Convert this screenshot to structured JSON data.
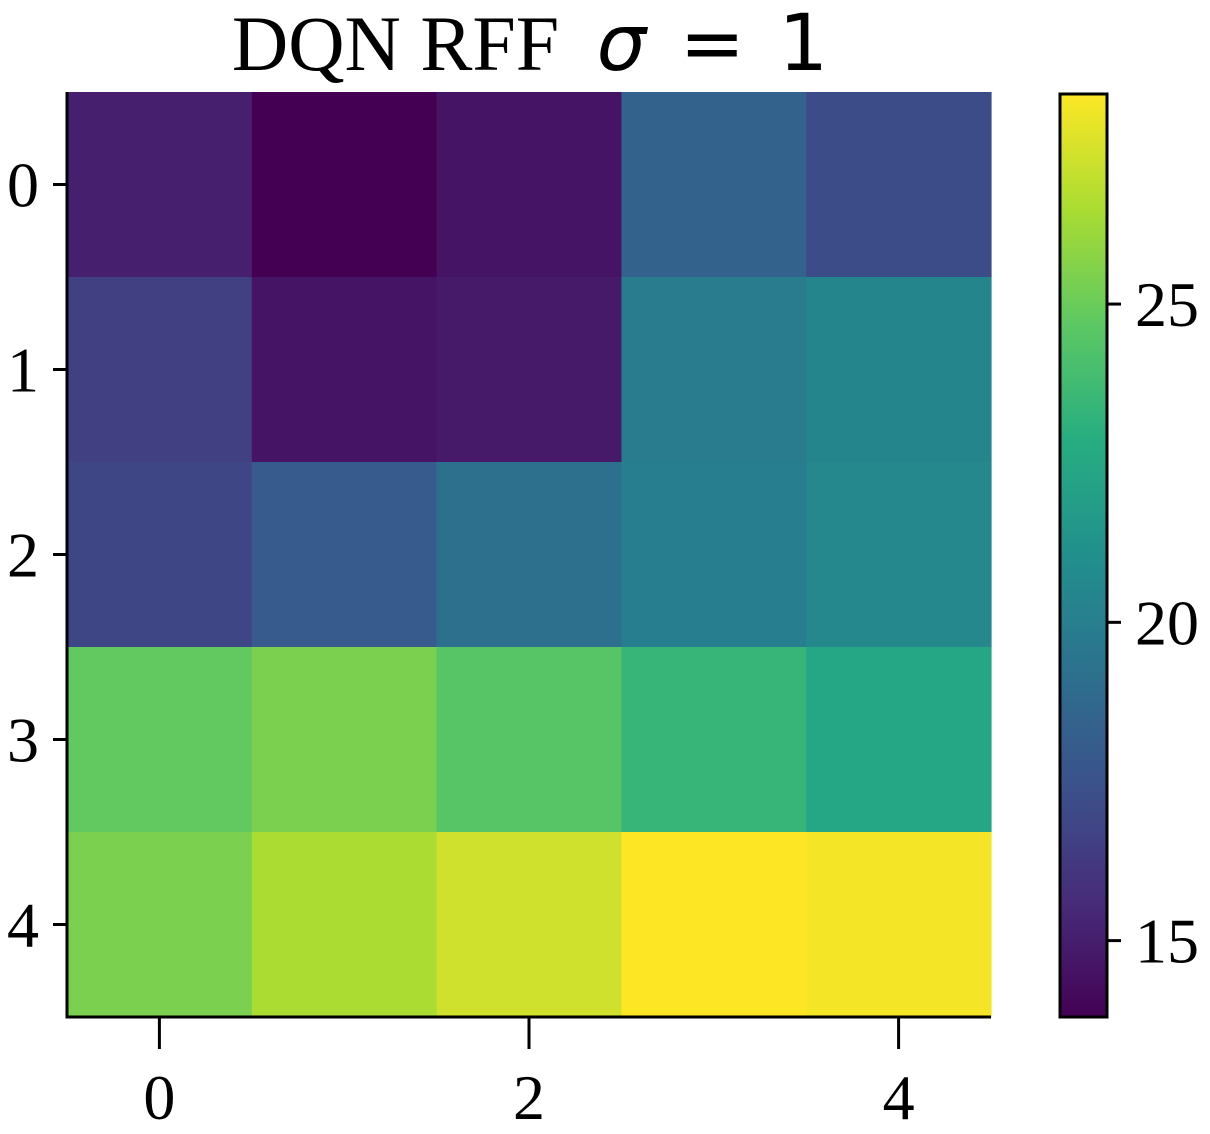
{
  "chart_data": {
    "type": "heatmap",
    "title": "DQN RFF",
    "title_math": {
      "symbol": "σ",
      "operator": "=",
      "value": "1"
    },
    "colormap": "viridis",
    "rows": [
      0,
      1,
      2,
      3,
      4
    ],
    "cols": [
      0,
      1,
      2,
      3,
      4
    ],
    "values": [
      [
        15.1,
        13.8,
        14.6,
        18.4,
        17.2
      ],
      [
        16.6,
        14.6,
        14.8,
        19.8,
        20.4
      ],
      [
        16.9,
        18.0,
        19.2,
        20.0,
        20.6
      ],
      [
        24.8,
        25.4,
        24.5,
        23.4,
        22.4
      ],
      [
        25.4,
        26.5,
        27.3,
        28.3,
        28.1
      ]
    ],
    "xticks": [
      0,
      2,
      4
    ],
    "yticks": [
      0,
      1,
      2,
      3,
      4
    ],
    "xlabel": "",
    "ylabel": "",
    "colorbar": {
      "min": 13.8,
      "max": 28.3,
      "ticks": [
        15,
        20,
        25
      ]
    },
    "grid": false
  }
}
